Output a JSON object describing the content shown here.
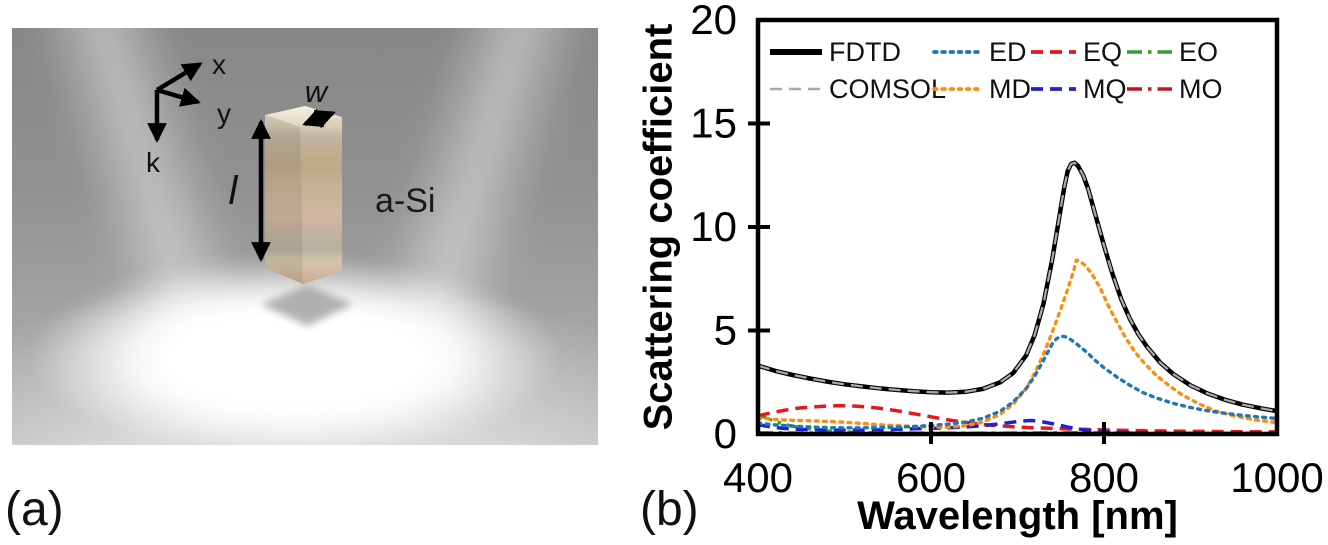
{
  "figure": {
    "panel_a": {
      "label": "(a)",
      "material_label": "a-Si",
      "axis_labels": {
        "x": "x",
        "y": "y",
        "k": "k"
      },
      "dimension_labels": {
        "width": "w",
        "length": "l"
      }
    },
    "panel_b": {
      "label": "(b)"
    }
  },
  "chart_data": {
    "type": "line",
    "title": "",
    "xlabel": "Wavelength [nm]",
    "ylabel": "Scattering coefficient",
    "xlim": [
      400,
      1000
    ],
    "ylim": [
      0,
      20
    ],
    "xticks": [
      400,
      600,
      800,
      1000
    ],
    "yticks": [
      0,
      5,
      10,
      15,
      20
    ],
    "grid": false,
    "legend_position": "inside top, two rows",
    "legend_rows": [
      [
        "FDTD",
        "ED",
        "EQ",
        "EO"
      ],
      [
        "COMSOL",
        "MD",
        "MQ",
        "MO"
      ]
    ],
    "series": [
      {
        "name": "EO",
        "color": "#2ca02c",
        "style": "dashdot",
        "width": 3.2,
        "points": [
          [
            400,
            0.92
          ],
          [
            408,
            0.8
          ],
          [
            416,
            0.67
          ],
          [
            424,
            0.55
          ],
          [
            432,
            0.46
          ],
          [
            440,
            0.38
          ],
          [
            450,
            0.3
          ],
          [
            460,
            0.24
          ],
          [
            472,
            0.19
          ],
          [
            485,
            0.14
          ],
          [
            500,
            0.1
          ],
          [
            520,
            0.07
          ],
          [
            540,
            0.06
          ],
          [
            570,
            0.05
          ],
          [
            600,
            0.04
          ],
          [
            650,
            0.03
          ],
          [
            700,
            0.03
          ],
          [
            750,
            0.03
          ],
          [
            800,
            0.03
          ],
          [
            850,
            0.03
          ],
          [
            900,
            0.03
          ],
          [
            950,
            0.03
          ],
          [
            1000,
            0.03
          ]
        ]
      },
      {
        "name": "MO",
        "color": "#bf1722",
        "style": "dashdot",
        "width": 3.2,
        "points": [
          [
            400,
            0.06
          ],
          [
            450,
            0.05
          ],
          [
            500,
            0.05
          ],
          [
            550,
            0.04
          ],
          [
            600,
            0.04
          ],
          [
            650,
            0.04
          ],
          [
            700,
            0.05
          ],
          [
            740,
            0.06
          ],
          [
            780,
            0.06
          ],
          [
            820,
            0.05
          ],
          [
            860,
            0.04
          ],
          [
            900,
            0.04
          ],
          [
            950,
            0.04
          ],
          [
            1000,
            0.04
          ]
        ]
      },
      {
        "name": "EQ",
        "color": "#e31a1c",
        "style": "dashed",
        "width": 3.5,
        "points": [
          [
            400,
            0.88
          ],
          [
            415,
            1.02
          ],
          [
            430,
            1.14
          ],
          [
            445,
            1.24
          ],
          [
            460,
            1.3
          ],
          [
            475,
            1.34
          ],
          [
            490,
            1.36
          ],
          [
            505,
            1.36
          ],
          [
            520,
            1.33
          ],
          [
            535,
            1.27
          ],
          [
            550,
            1.19
          ],
          [
            565,
            1.09
          ],
          [
            580,
            0.98
          ],
          [
            600,
            0.83
          ],
          [
            620,
            0.68
          ],
          [
            640,
            0.56
          ],
          [
            660,
            0.46
          ],
          [
            680,
            0.39
          ],
          [
            700,
            0.34
          ],
          [
            720,
            0.3
          ],
          [
            740,
            0.27
          ],
          [
            760,
            0.24
          ],
          [
            780,
            0.22
          ],
          [
            800,
            0.2
          ],
          [
            830,
            0.17
          ],
          [
            860,
            0.15
          ],
          [
            900,
            0.13
          ],
          [
            950,
            0.11
          ],
          [
            1000,
            0.1
          ]
        ]
      },
      {
        "name": "MQ",
        "color": "#2222cc",
        "style": "dashed",
        "width": 3.5,
        "points": [
          [
            400,
            0.45
          ],
          [
            415,
            0.34
          ],
          [
            430,
            0.27
          ],
          [
            445,
            0.23
          ],
          [
            460,
            0.21
          ],
          [
            480,
            0.19
          ],
          [
            500,
            0.19
          ],
          [
            520,
            0.19
          ],
          [
            540,
            0.2
          ],
          [
            560,
            0.22
          ],
          [
            580,
            0.25
          ],
          [
            600,
            0.27
          ],
          [
            620,
            0.3
          ],
          [
            640,
            0.34
          ],
          [
            660,
            0.4
          ],
          [
            675,
            0.47
          ],
          [
            690,
            0.55
          ],
          [
            700,
            0.6
          ],
          [
            710,
            0.64
          ],
          [
            716,
            0.65
          ],
          [
            722,
            0.63
          ],
          [
            730,
            0.58
          ],
          [
            740,
            0.5
          ],
          [
            750,
            0.41
          ],
          [
            760,
            0.32
          ],
          [
            775,
            0.21
          ],
          [
            790,
            0.14
          ],
          [
            805,
            0.1
          ],
          [
            830,
            0.07
          ],
          [
            860,
            0.05
          ],
          [
            900,
            0.04
          ],
          [
            950,
            0.04
          ],
          [
            1000,
            0.04
          ]
        ]
      },
      {
        "name": "MD",
        "color": "#fd8d0e",
        "style": "dotted",
        "width": 3.4,
        "points": [
          [
            400,
            0.78
          ],
          [
            420,
            0.7
          ],
          [
            440,
            0.66
          ],
          [
            460,
            0.64
          ],
          [
            480,
            0.61
          ],
          [
            500,
            0.57
          ],
          [
            520,
            0.51
          ],
          [
            540,
            0.45
          ],
          [
            560,
            0.4
          ],
          [
            580,
            0.36
          ],
          [
            600,
            0.33
          ],
          [
            620,
            0.33
          ],
          [
            640,
            0.4
          ],
          [
            660,
            0.58
          ],
          [
            680,
            0.95
          ],
          [
            695,
            1.45
          ],
          [
            710,
            2.2
          ],
          [
            720,
            2.95
          ],
          [
            730,
            3.85
          ],
          [
            740,
            4.9
          ],
          [
            750,
            6.05
          ],
          [
            758,
            7.0
          ],
          [
            765,
            7.9
          ],
          [
            768,
            8.4
          ],
          [
            772,
            8.35
          ],
          [
            778,
            8.15
          ],
          [
            785,
            7.8
          ],
          [
            795,
            7.1
          ],
          [
            805,
            6.2
          ],
          [
            815,
            5.4
          ],
          [
            825,
            4.65
          ],
          [
            835,
            4.0
          ],
          [
            845,
            3.5
          ],
          [
            860,
            2.85
          ],
          [
            875,
            2.35
          ],
          [
            890,
            1.9
          ],
          [
            910,
            1.45
          ],
          [
            930,
            1.1
          ],
          [
            950,
            0.88
          ],
          [
            975,
            0.68
          ],
          [
            1000,
            0.55
          ]
        ]
      },
      {
        "name": "ED",
        "color": "#1f77b4",
        "style": "dotted",
        "width": 3.4,
        "points": [
          [
            400,
            0.52
          ],
          [
            420,
            0.44
          ],
          [
            440,
            0.38
          ],
          [
            460,
            0.34
          ],
          [
            480,
            0.31
          ],
          [
            500,
            0.3
          ],
          [
            520,
            0.3
          ],
          [
            540,
            0.31
          ],
          [
            560,
            0.33
          ],
          [
            580,
            0.36
          ],
          [
            600,
            0.41
          ],
          [
            620,
            0.48
          ],
          [
            640,
            0.58
          ],
          [
            660,
            0.76
          ],
          [
            680,
            1.1
          ],
          [
            695,
            1.55
          ],
          [
            710,
            2.2
          ],
          [
            720,
            2.8
          ],
          [
            728,
            3.4
          ],
          [
            735,
            3.95
          ],
          [
            740,
            4.35
          ],
          [
            745,
            4.6
          ],
          [
            750,
            4.72
          ],
          [
            755,
            4.7
          ],
          [
            762,
            4.55
          ],
          [
            770,
            4.3
          ],
          [
            780,
            3.95
          ],
          [
            790,
            3.55
          ],
          [
            800,
            3.2
          ],
          [
            815,
            2.75
          ],
          [
            830,
            2.35
          ],
          [
            845,
            2.0
          ],
          [
            860,
            1.75
          ],
          [
            880,
            1.48
          ],
          [
            900,
            1.28
          ],
          [
            920,
            1.12
          ],
          [
            940,
            1.0
          ],
          [
            960,
            0.9
          ],
          [
            980,
            0.82
          ],
          [
            1000,
            0.75
          ]
        ]
      },
      {
        "name": "FDTD",
        "color": "#000000",
        "style": "solid",
        "width": 4.5,
        "points": [
          [
            400,
            3.3
          ],
          [
            420,
            3.05
          ],
          [
            440,
            2.85
          ],
          [
            460,
            2.68
          ],
          [
            480,
            2.53
          ],
          [
            500,
            2.4
          ],
          [
            520,
            2.3
          ],
          [
            540,
            2.21
          ],
          [
            560,
            2.13
          ],
          [
            580,
            2.07
          ],
          [
            600,
            2.02
          ],
          [
            620,
            2.0
          ],
          [
            640,
            2.04
          ],
          [
            660,
            2.18
          ],
          [
            680,
            2.5
          ],
          [
            695,
            2.95
          ],
          [
            710,
            3.8
          ],
          [
            720,
            4.8
          ],
          [
            730,
            6.3
          ],
          [
            740,
            8.4
          ],
          [
            748,
            10.4
          ],
          [
            754,
            11.9
          ],
          [
            758,
            12.7
          ],
          [
            762,
            13.05
          ],
          [
            766,
            13.1
          ],
          [
            770,
            12.95
          ],
          [
            776,
            12.5
          ],
          [
            782,
            11.8
          ],
          [
            790,
            10.6
          ],
          [
            800,
            9.1
          ],
          [
            810,
            7.7
          ],
          [
            820,
            6.5
          ],
          [
            830,
            5.55
          ],
          [
            840,
            4.8
          ],
          [
            850,
            4.2
          ],
          [
            865,
            3.45
          ],
          [
            880,
            2.9
          ],
          [
            900,
            2.35
          ],
          [
            920,
            1.95
          ],
          [
            940,
            1.65
          ],
          [
            960,
            1.42
          ],
          [
            980,
            1.25
          ],
          [
            1000,
            1.1
          ]
        ]
      },
      {
        "name": "COMSOL",
        "color": "#a9a9a9",
        "style": "dashed",
        "width": 2.3,
        "points": [
          [
            400,
            3.3
          ],
          [
            420,
            3.05
          ],
          [
            440,
            2.85
          ],
          [
            460,
            2.68
          ],
          [
            480,
            2.53
          ],
          [
            500,
            2.4
          ],
          [
            520,
            2.3
          ],
          [
            540,
            2.21
          ],
          [
            560,
            2.13
          ],
          [
            580,
            2.07
          ],
          [
            600,
            2.02
          ],
          [
            620,
            2.0
          ],
          [
            640,
            2.04
          ],
          [
            660,
            2.18
          ],
          [
            680,
            2.5
          ],
          [
            695,
            2.95
          ],
          [
            710,
            3.8
          ],
          [
            720,
            4.8
          ],
          [
            730,
            6.3
          ],
          [
            740,
            8.4
          ],
          [
            748,
            10.4
          ],
          [
            754,
            11.9
          ],
          [
            758,
            12.7
          ],
          [
            762,
            13.05
          ],
          [
            766,
            13.1
          ],
          [
            770,
            12.95
          ],
          [
            776,
            12.5
          ],
          [
            782,
            11.8
          ],
          [
            790,
            10.6
          ],
          [
            800,
            9.1
          ],
          [
            810,
            7.7
          ],
          [
            820,
            6.5
          ],
          [
            830,
            5.55
          ],
          [
            840,
            4.8
          ],
          [
            850,
            4.2
          ],
          [
            865,
            3.45
          ],
          [
            880,
            2.9
          ],
          [
            900,
            2.35
          ],
          [
            920,
            1.95
          ],
          [
            940,
            1.65
          ],
          [
            960,
            1.42
          ],
          [
            980,
            1.25
          ],
          [
            1000,
            1.1
          ]
        ]
      }
    ]
  }
}
